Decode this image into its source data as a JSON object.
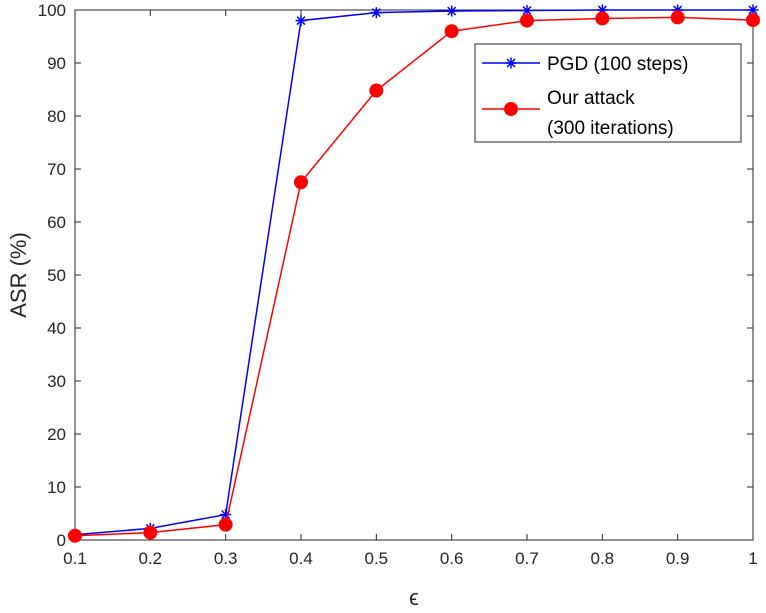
{
  "chart_data": {
    "type": "line",
    "xlabel": "ϵ",
    "ylabel": "ASR (%)",
    "xlim": [
      0.1,
      1
    ],
    "ylim": [
      0,
      100
    ],
    "xticks": [
      "0.1",
      "0.2",
      "0.3",
      "0.4",
      "0.5",
      "0.6",
      "0.7",
      "0.8",
      "0.9",
      "1"
    ],
    "yticks": [
      "0",
      "10",
      "20",
      "30",
      "40",
      "50",
      "60",
      "70",
      "80",
      "90",
      "100"
    ],
    "grid": false,
    "legend_position": "top-right",
    "x": [
      0.1,
      0.2,
      0.3,
      0.4,
      0.5,
      0.6,
      0.7,
      0.8,
      0.9,
      1.0
    ],
    "series": [
      {
        "name": "PGD (100 steps)",
        "color": "#0000ff",
        "marker": "asterisk",
        "values": [
          1.0,
          2.2,
          4.8,
          98.0,
          99.5,
          99.8,
          99.9,
          100.0,
          100.0,
          100.0
        ]
      },
      {
        "name_lines": [
          "Our attack",
          "(300 iterations)"
        ],
        "color": "#ff0000",
        "marker": "circle",
        "values": [
          0.8,
          1.4,
          2.9,
          67.5,
          84.8,
          96.0,
          98.0,
          98.4,
          98.6,
          98.1
        ]
      }
    ]
  }
}
